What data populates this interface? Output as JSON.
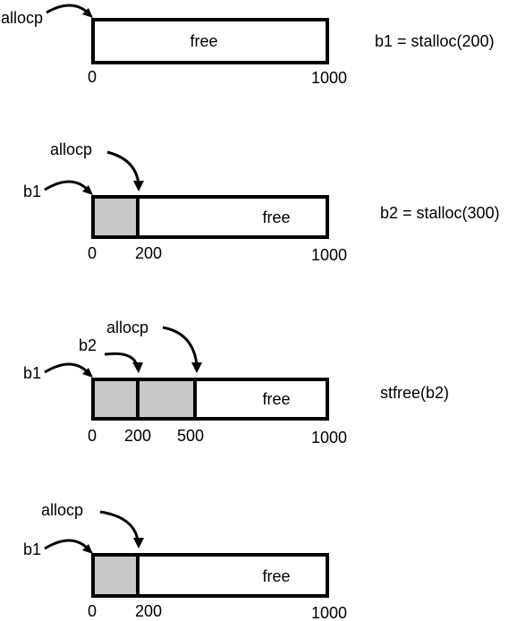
{
  "panels": [
    {
      "operation": "b1 = stalloc(200)",
      "free_label": "free",
      "pointers": {
        "allocp": "allocp"
      },
      "ticks": {
        "start": "0",
        "end": "1000"
      }
    },
    {
      "operation": "b2 = stalloc(300)",
      "free_label": "free",
      "pointers": {
        "allocp": "allocp",
        "b1": "b1"
      },
      "ticks": {
        "start": "0",
        "mid1": "200",
        "end": "1000"
      }
    },
    {
      "operation": "stfree(b2)",
      "free_label": "free",
      "pointers": {
        "allocp": "allocp",
        "b1": "b1",
        "b2": "b2"
      },
      "ticks": {
        "start": "0",
        "mid1": "200",
        "mid2": "500",
        "end": "1000"
      }
    },
    {
      "operation": "",
      "free_label": "free",
      "pointers": {
        "allocp": "allocp",
        "b1": "b1"
      },
      "ticks": {
        "start": "0",
        "mid1": "200",
        "end": "1000"
      }
    }
  ],
  "colors": {
    "allocated_block": "#c8c8c8",
    "free_block": "#ffffff",
    "stroke": "#000000"
  }
}
